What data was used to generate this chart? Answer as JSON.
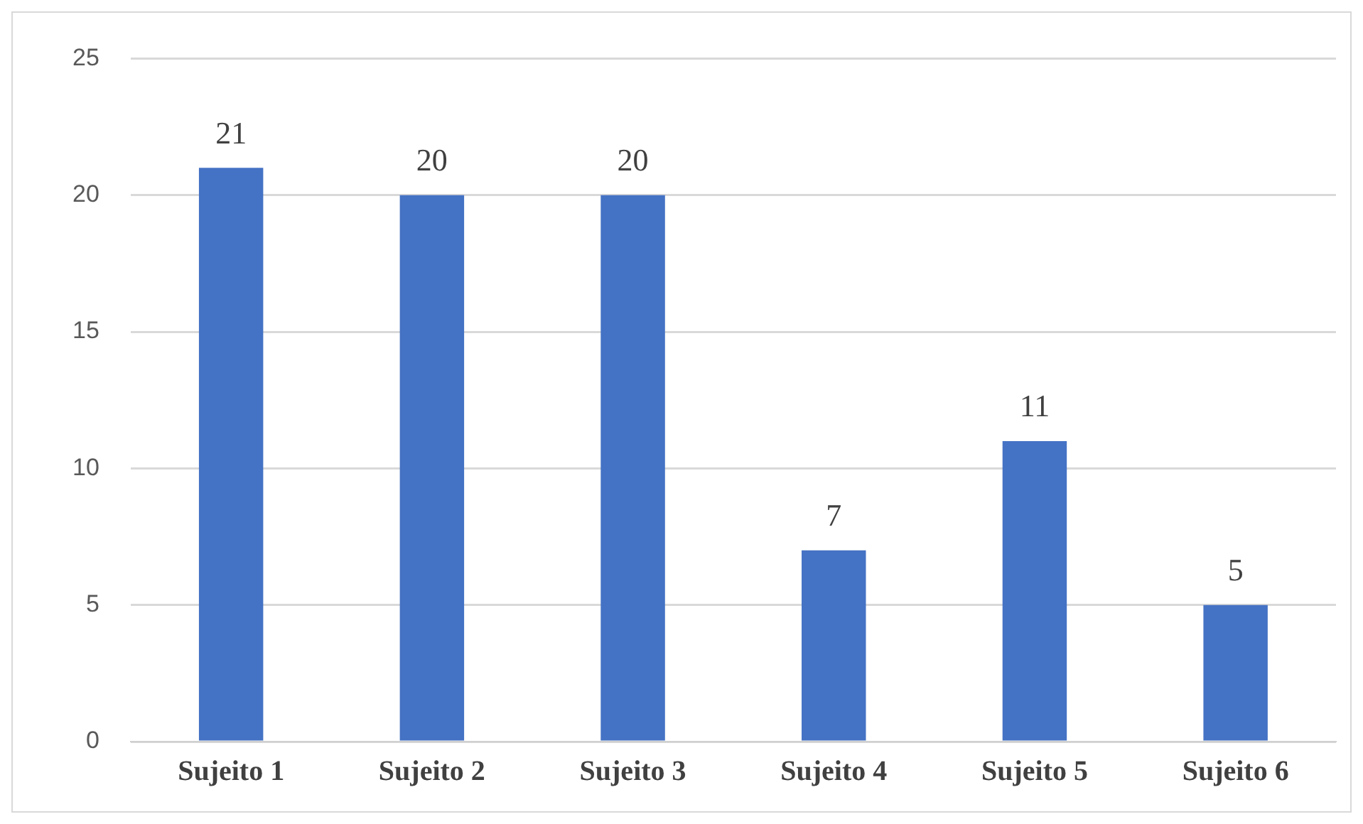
{
  "chart_data": {
    "type": "bar",
    "categories": [
      "Sujeito 1",
      "Sujeito 2",
      "Sujeito 3",
      "Sujeito 4",
      "Sujeito 5",
      "Sujeito 6"
    ],
    "values": [
      21,
      20,
      20,
      7,
      11,
      5
    ],
    "color": "#4472c4",
    "ylim": [
      0,
      25
    ],
    "yticks": [
      0,
      5,
      10,
      15,
      20,
      25
    ],
    "grid": "y",
    "data_labels": true
  }
}
